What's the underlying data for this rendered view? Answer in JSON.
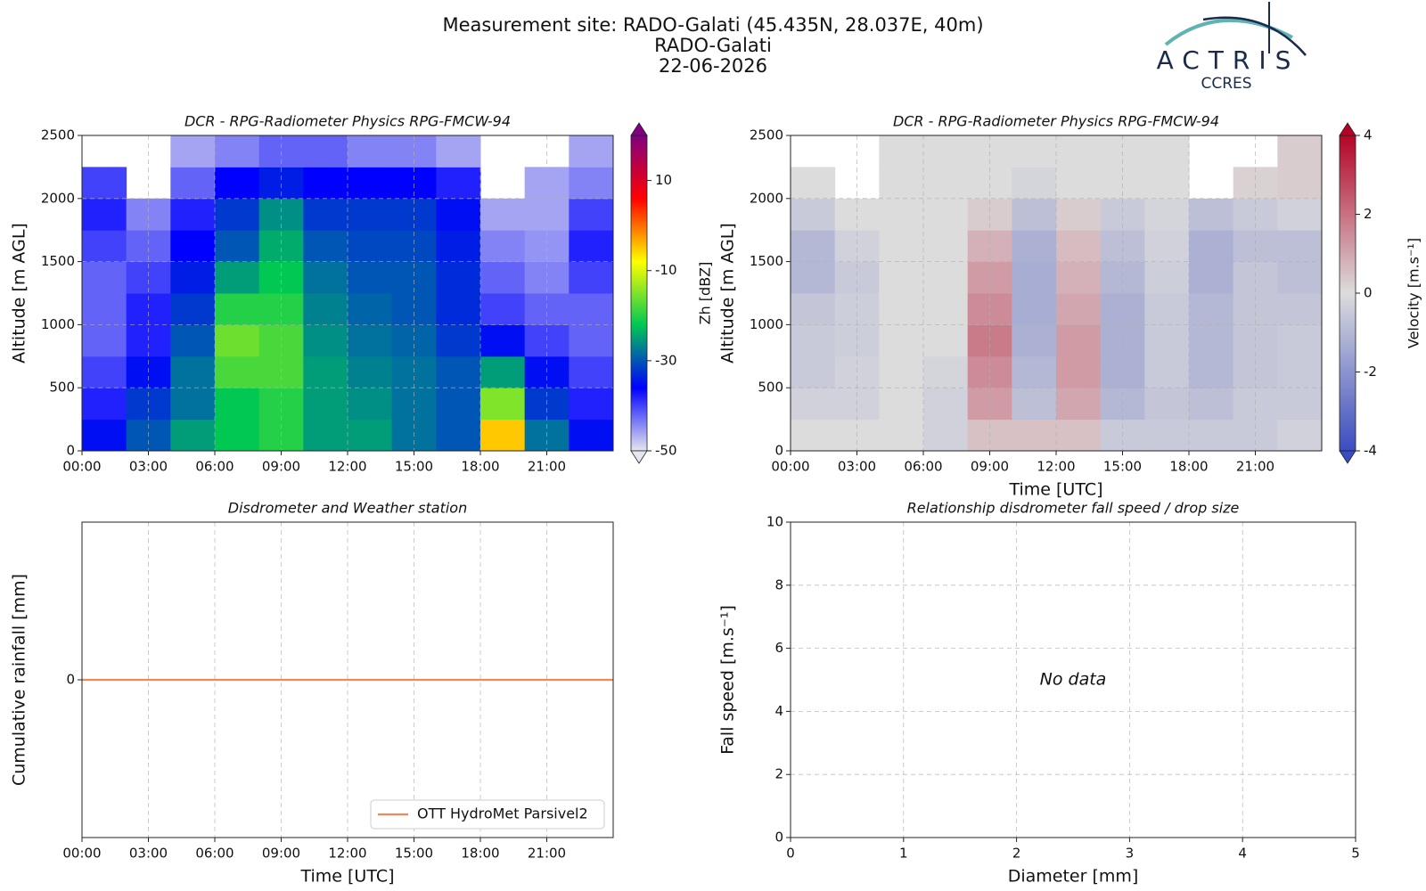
{
  "header": {
    "title": "Measurement site: RADO-Galati (45.435N, 28.037E, 40m)",
    "station": "RADO-Galati",
    "date": "22-06-2026",
    "logo": {
      "name": "ACTRIS",
      "subname": "CCRES"
    }
  },
  "chart_data": [
    {
      "type": "heatmap",
      "title": "DCR - RPG-Radiometer Physics RPG-FMCW-94",
      "ylabel": "Altitude [m AGL]",
      "xlim": [
        0,
        24
      ],
      "xticks": [
        {
          "value": 0,
          "label": "00:00"
        },
        {
          "value": 3,
          "label": "03:00"
        },
        {
          "value": 6,
          "label": "06:00"
        },
        {
          "value": 9,
          "label": "09:00"
        },
        {
          "value": 12,
          "label": "12:00"
        },
        {
          "value": 15,
          "label": "15:00"
        },
        {
          "value": 18,
          "label": "18:00"
        },
        {
          "value": 21,
          "label": "21:00"
        }
      ],
      "ylim": [
        0,
        2500
      ],
      "yticks": [
        0,
        500,
        1000,
        1500,
        2000,
        2500
      ],
      "grid": true,
      "x_edges": [
        0,
        2,
        4,
        6,
        8,
        10,
        12,
        14,
        16,
        18,
        20,
        22,
        24
      ],
      "y_edges": [
        0,
        250,
        500,
        750,
        1000,
        1250,
        1500,
        1750,
        2000,
        2250,
        2500
      ],
      "z": [
        [
          -35,
          -30,
          -25,
          -22,
          -20,
          -25,
          -25,
          -28,
          -30,
          -5,
          -28,
          -35
        ],
        [
          -38,
          -32,
          -28,
          -22,
          -20,
          -25,
          -26,
          -28,
          -30,
          -15,
          -32,
          -38
        ],
        [
          -40,
          -35,
          -28,
          -18,
          -18,
          -25,
          -27,
          -28,
          -30,
          -25,
          -35,
          -40
        ],
        [
          -42,
          -38,
          -30,
          -16,
          -18,
          -26,
          -28,
          -29,
          -32,
          -35,
          -40,
          -42
        ],
        [
          -42,
          -38,
          -32,
          -20,
          -20,
          -27,
          -29,
          -30,
          -33,
          -40,
          -42,
          -42
        ],
        [
          -42,
          -40,
          -34,
          -25,
          -22,
          -28,
          -30,
          -30,
          -33,
          -42,
          -44,
          -40
        ],
        [
          -40,
          -42,
          -36,
          -30,
          -24,
          -30,
          -31,
          -31,
          -34,
          -44,
          -45,
          -38
        ],
        [
          -38,
          -44,
          -38,
          -32,
          -26,
          -32,
          -32,
          -32,
          -35,
          -46,
          -46,
          -40
        ],
        [
          -40,
          null,
          -42,
          -36,
          -34,
          -36,
          -36,
          -36,
          -38,
          null,
          -46,
          -44
        ],
        [
          null,
          null,
          -46,
          -44,
          -42,
          -42,
          -44,
          -44,
          -46,
          null,
          null,
          -46
        ]
      ],
      "colormap": [
        "#e6e6ee",
        "#0000ff",
        "#00c853",
        "#ffff00",
        "#ff0000",
        "#800080"
      ],
      "clim": [
        -50,
        20
      ],
      "cticks": [
        -50,
        -30,
        -10,
        10
      ],
      "clabel": "Zh [dBZ]"
    },
    {
      "type": "heatmap",
      "title": "DCR - RPG-Radiometer Physics RPG-FMCW-94",
      "xlabel": "Time [UTC]",
      "ylabel": "Altitude [m AGL]",
      "xlim": [
        0,
        24
      ],
      "xticks": [
        {
          "value": 0,
          "label": "00:00"
        },
        {
          "value": 3,
          "label": "03:00"
        },
        {
          "value": 6,
          "label": "06:00"
        },
        {
          "value": 9,
          "label": "09:00"
        },
        {
          "value": 12,
          "label": "12:00"
        },
        {
          "value": 15,
          "label": "15:00"
        },
        {
          "value": 18,
          "label": "18:00"
        },
        {
          "value": 21,
          "label": "21:00"
        }
      ],
      "ylim": [
        0,
        2500
      ],
      "yticks": [
        0,
        500,
        1000,
        1500,
        2000,
        2500
      ],
      "grid": true,
      "x_edges": [
        0,
        2,
        4,
        6,
        8,
        10,
        12,
        14,
        16,
        18,
        20,
        22,
        24
      ],
      "y_edges": [
        0,
        250,
        500,
        750,
        1000,
        1250,
        1500,
        1750,
        2000,
        2250,
        2500
      ],
      "z": [
        [
          0,
          0,
          0,
          -0.3,
          0.5,
          0.5,
          0.5,
          -0.5,
          -0.5,
          -0.5,
          -0.5,
          -0.3
        ],
        [
          -0.3,
          -0.3,
          0,
          -0.3,
          1.2,
          -0.8,
          1,
          -1,
          -0.6,
          -0.8,
          -0.5,
          -0.5
        ],
        [
          -0.5,
          -0.3,
          0,
          -0.2,
          1.5,
          -1,
          1.2,
          -1.2,
          -0.5,
          -1,
          -0.6,
          -0.5
        ],
        [
          -0.5,
          -0.4,
          0,
          0,
          1.8,
          -1.2,
          1.2,
          -1.2,
          -0.5,
          -1,
          -0.6,
          -0.5
        ],
        [
          -0.6,
          -0.4,
          0,
          0,
          1.5,
          -1.3,
          1,
          -1.2,
          -0.5,
          -1,
          -0.6,
          -0.6
        ],
        [
          -1,
          -0.5,
          0,
          0,
          1.2,
          -1.3,
          0.8,
          -1,
          -0.4,
          -1.2,
          -0.6,
          -0.8
        ],
        [
          -1,
          -0.3,
          0,
          0,
          0.8,
          -1.2,
          0.6,
          -0.8,
          -0.3,
          -1.2,
          -0.8,
          -0.8
        ],
        [
          -0.5,
          0,
          0,
          0,
          0.3,
          -0.8,
          0.3,
          -0.5,
          -0.2,
          -0.8,
          -0.5,
          -0.3
        ],
        [
          0,
          null,
          0,
          0,
          0,
          -0.2,
          0,
          0,
          0,
          null,
          0.2,
          0.3
        ],
        [
          null,
          null,
          0,
          0,
          0,
          0,
          0,
          0,
          0,
          null,
          null,
          0.3
        ]
      ],
      "colormap": [
        "#3b4cc0",
        "#dcdcdc",
        "#b40426"
      ],
      "clim": [
        -4,
        4
      ],
      "cticks": [
        -4,
        -2,
        0,
        2,
        4
      ],
      "clabel": "Velocity [m.s⁻¹]"
    },
    {
      "type": "line",
      "title": "Disdrometer and Weather station",
      "xlabel": "Time [UTC]",
      "ylabel": "Cumulative rainfall [mm]",
      "xlim": [
        0,
        24
      ],
      "xticks": [
        {
          "value": 0,
          "label": "00:00"
        },
        {
          "value": 3,
          "label": "03:00"
        },
        {
          "value": 6,
          "label": "06:00"
        },
        {
          "value": 9,
          "label": "09:00"
        },
        {
          "value": 12,
          "label": "12:00"
        },
        {
          "value": 15,
          "label": "15:00"
        },
        {
          "value": 18,
          "label": "18:00"
        },
        {
          "value": 21,
          "label": "21:00"
        }
      ],
      "ylim": [
        -1,
        1
      ],
      "yticks": [
        0
      ],
      "grid": true,
      "legend": "lower-right",
      "x": [
        0,
        24
      ],
      "series": [
        {
          "name": "OTT HydroMet Parsivel2",
          "color": "#ef8a5a",
          "values": [
            0,
            0
          ]
        }
      ]
    },
    {
      "type": "scatter",
      "title": "Relationship disdrometer fall speed / drop size",
      "xlabel": "Diameter [mm]",
      "ylabel": "Fall speed [m.s⁻¹]",
      "xlim": [
        0,
        5
      ],
      "xticks": [
        0,
        1,
        2,
        3,
        4,
        5
      ],
      "ylim": [
        0,
        10
      ],
      "yticks": [
        0,
        2,
        4,
        6,
        8,
        10
      ],
      "grid": true,
      "annotation": "No data"
    }
  ]
}
